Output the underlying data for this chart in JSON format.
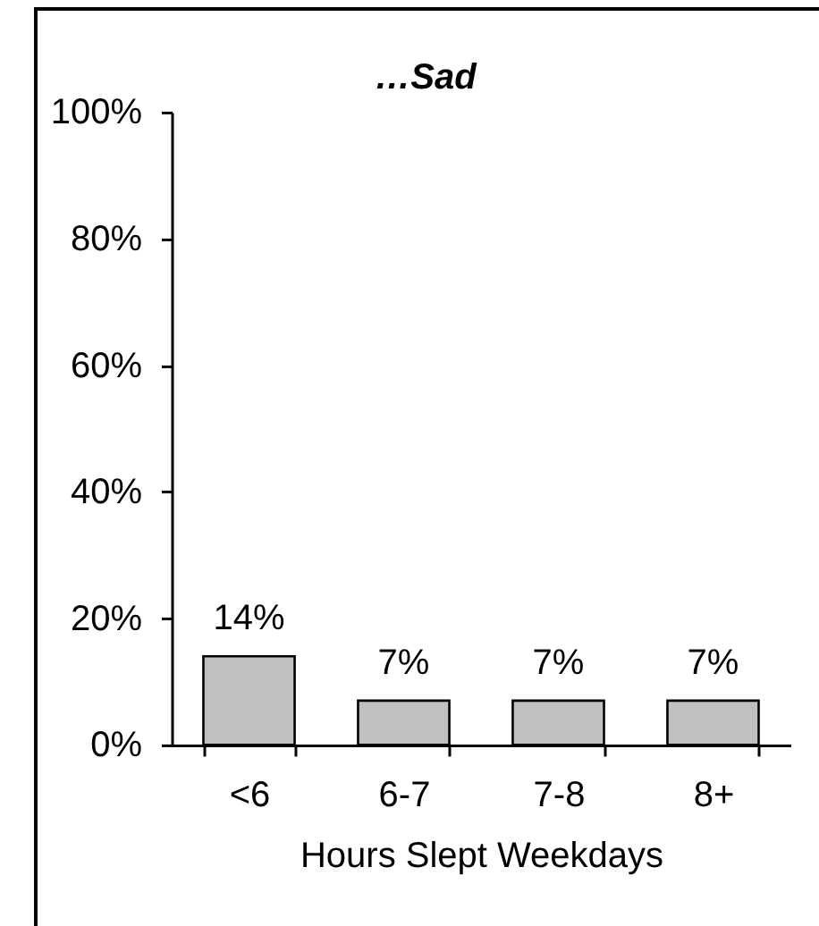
{
  "chart_data": {
    "type": "bar",
    "title": "…Sad",
    "xlabel": "Hours Slept Weekdays",
    "categories": [
      "<6",
      "6-7",
      "7-8",
      "8+"
    ],
    "values": [
      14,
      7,
      7,
      7
    ],
    "value_labels": [
      "14%",
      "7%",
      "7%",
      "7%"
    ],
    "color": "#c0c0c0",
    "ylim": [
      0,
      100
    ],
    "yticks": [
      {
        "value": 0,
        "label": "0%"
      },
      {
        "value": 20,
        "label": "20%"
      },
      {
        "value": 40,
        "label": "40%"
      },
      {
        "value": 60,
        "label": "60%"
      },
      {
        "value": 80,
        "label": "80%"
      },
      {
        "value": 100,
        "label": "100%"
      }
    ]
  }
}
